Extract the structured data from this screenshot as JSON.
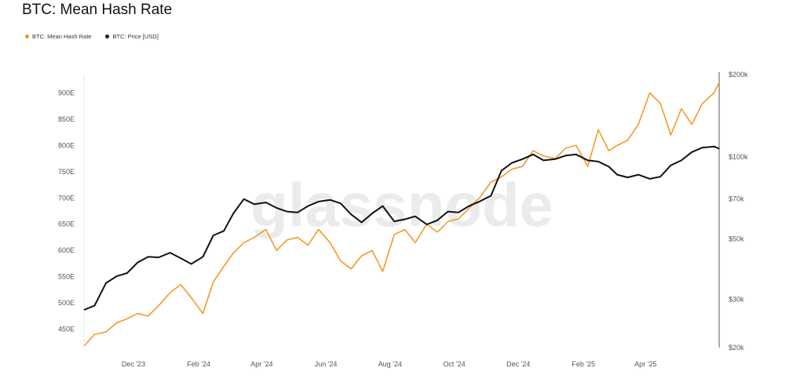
{
  "title": "BTC: Mean Hash Rate",
  "legend": [
    {
      "label": "BTC: Mean Hash Rate",
      "color": "#f7931a"
    },
    {
      "label": "BTC: Price [USD]",
      "color": "#111111"
    }
  ],
  "watermark": "glassnode",
  "chart_data": {
    "type": "line",
    "x_ticks": [
      "Dec '23",
      "Feb '24",
      "Apr '24",
      "Jun '24",
      "Aug '24",
      "Oct '24",
      "Dec '24",
      "Feb '25",
      "Apr '25"
    ],
    "left_axis": {
      "ticks": [
        "450E",
        "500E",
        "550E",
        "600E",
        "650E",
        "700E",
        "750E",
        "800E",
        "850E",
        "900E"
      ],
      "range": [
        415,
        935
      ]
    },
    "right_axis": {
      "ticks": [
        "$20k",
        "$30k",
        "$50k",
        "$70k",
        "$100k",
        "$200k"
      ],
      "values": [
        20000,
        30000,
        50000,
        70000,
        100000,
        200000
      ],
      "scale": "log"
    },
    "x_range": [
      "2023-10-15",
      "2025-06-10"
    ],
    "series": [
      {
        "name": "BTC: Mean Hash Rate",
        "axis": "left",
        "color": "#f7931a",
        "x": [
          "2023-10-15",
          "2023-10-25",
          "2023-11-05",
          "2023-11-15",
          "2023-11-25",
          "2023-12-05",
          "2023-12-15",
          "2023-12-25",
          "2024-01-05",
          "2024-01-15",
          "2024-01-25",
          "2024-02-05",
          "2024-02-15",
          "2024-02-25",
          "2024-03-05",
          "2024-03-15",
          "2024-03-25",
          "2024-04-05",
          "2024-04-15",
          "2024-04-25",
          "2024-05-05",
          "2024-05-15",
          "2024-05-25",
          "2024-06-05",
          "2024-06-15",
          "2024-06-25",
          "2024-07-05",
          "2024-07-15",
          "2024-07-25",
          "2024-08-05",
          "2024-08-15",
          "2024-08-25",
          "2024-09-05",
          "2024-09-15",
          "2024-09-25",
          "2024-10-05",
          "2024-10-15",
          "2024-10-25",
          "2024-11-05",
          "2024-11-15",
          "2024-11-25",
          "2024-12-05",
          "2024-12-15",
          "2024-12-25",
          "2025-01-05",
          "2025-01-15",
          "2025-01-25",
          "2025-02-05",
          "2025-02-15",
          "2025-02-25",
          "2025-03-05",
          "2025-03-15",
          "2025-03-25",
          "2025-04-05",
          "2025-04-15",
          "2025-04-25",
          "2025-05-05",
          "2025-05-15",
          "2025-05-25",
          "2025-06-05",
          "2025-06-10"
        ],
        "values": [
          418,
          440,
          445,
          462,
          470,
          480,
          475,
          495,
          520,
          535,
          510,
          480,
          540,
          570,
          595,
          615,
          625,
          640,
          600,
          620,
          625,
          610,
          640,
          615,
          580,
          565,
          590,
          600,
          560,
          630,
          640,
          615,
          650,
          635,
          655,
          660,
          680,
          700,
          730,
          740,
          755,
          760,
          790,
          780,
          775,
          795,
          800,
          760,
          830,
          790,
          800,
          810,
          840,
          900,
          880,
          820,
          870,
          840,
          880,
          900,
          920
        ]
      },
      {
        "name": "BTC: Price [USD]",
        "axis": "right",
        "color": "#111111",
        "x": [
          "2023-10-15",
          "2023-10-25",
          "2023-11-05",
          "2023-11-15",
          "2023-11-25",
          "2023-12-05",
          "2023-12-15",
          "2023-12-25",
          "2024-01-05",
          "2024-01-15",
          "2024-01-25",
          "2024-02-05",
          "2024-02-15",
          "2024-02-25",
          "2024-03-05",
          "2024-03-15",
          "2024-03-25",
          "2024-04-05",
          "2024-04-15",
          "2024-04-25",
          "2024-05-05",
          "2024-05-15",
          "2024-05-25",
          "2024-06-05",
          "2024-06-15",
          "2024-06-25",
          "2024-07-05",
          "2024-07-15",
          "2024-07-25",
          "2024-08-05",
          "2024-08-15",
          "2024-08-25",
          "2024-09-05",
          "2024-09-15",
          "2024-09-25",
          "2024-10-05",
          "2024-10-15",
          "2024-10-25",
          "2024-11-05",
          "2024-11-15",
          "2024-11-25",
          "2024-12-05",
          "2024-12-15",
          "2024-12-25",
          "2025-01-05",
          "2025-01-15",
          "2025-01-25",
          "2025-02-05",
          "2025-02-15",
          "2025-02-25",
          "2025-03-05",
          "2025-03-15",
          "2025-03-25",
          "2025-04-05",
          "2025-04-15",
          "2025-04-25",
          "2025-05-05",
          "2025-05-15",
          "2025-05-25",
          "2025-06-05",
          "2025-06-10"
        ],
        "values": [
          27500,
          28500,
          34500,
          36500,
          37500,
          41000,
          43000,
          42800,
          44500,
          42500,
          40500,
          43000,
          51500,
          53500,
          62000,
          70000,
          67000,
          68000,
          65000,
          63000,
          62500,
          66000,
          68500,
          69500,
          67500,
          61500,
          57500,
          62000,
          66000,
          58000,
          59000,
          60500,
          56500,
          58500,
          63000,
          62500,
          66000,
          68500,
          72000,
          89000,
          95000,
          98000,
          102000,
          97000,
          98000,
          101000,
          102000,
          97000,
          96000,
          92000,
          86000,
          84000,
          86000,
          83000,
          84500,
          93000,
          97000,
          104000,
          108000,
          109000,
          107000
        ]
      }
    ],
    "xlabel": "",
    "ylabel": "",
    "grid": false
  }
}
